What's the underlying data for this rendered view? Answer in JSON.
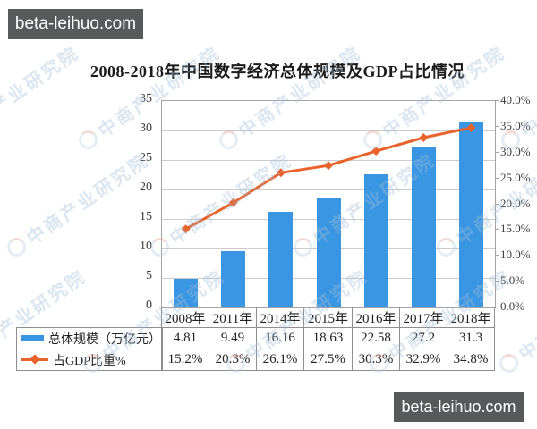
{
  "banners": {
    "top_left": "beta-leihuo.com",
    "bottom_right": "beta-leihuo.com"
  },
  "watermark": {
    "text": "中商产业研究院"
  },
  "chart_data": {
    "type": "bar",
    "subtype": "bar-line-combo",
    "title": "2008-2018年中国数字经济总体规模及GDP占比情况",
    "categories": [
      "2008年",
      "2011年",
      "2014年",
      "2015年",
      "2016年",
      "2017年",
      "2018年"
    ],
    "series": [
      {
        "name": "总体规模（万亿元）",
        "type": "bar",
        "axis": "left",
        "color": "#3a96e2",
        "values": [
          4.81,
          9.49,
          16.16,
          18.63,
          22.58,
          27.2,
          31.3
        ],
        "labels": [
          "4.81",
          "9.49",
          "16.16",
          "18.63",
          "22.58",
          "27.2",
          "31.3"
        ]
      },
      {
        "name": "占GDP比重%",
        "type": "line",
        "axis": "right",
        "color": "#e8622c",
        "values": [
          15.2,
          20.3,
          26.1,
          27.5,
          30.3,
          32.9,
          34.8
        ],
        "labels": [
          "15.2%",
          "20.3%",
          "26.1%",
          "27.5%",
          "30.3%",
          "32.9%",
          "34.8%"
        ]
      }
    ],
    "left_axis": {
      "min": 0,
      "max": 35,
      "step": 5,
      "ticks": [
        "0",
        "5",
        "10",
        "15",
        "20",
        "25",
        "30",
        "35"
      ]
    },
    "right_axis": {
      "min": 0,
      "max": 40,
      "step": 5,
      "ticks": [
        "0.0%",
        "5.0%",
        "10.0%",
        "15.0%",
        "20.0%",
        "25.0%",
        "30.0%",
        "35.0%",
        "40.0%"
      ]
    },
    "grid": "horizontal-only",
    "legend_position": "data-table-left",
    "colors": {
      "bar": "#3a96e2",
      "line": "#e8622c",
      "banner_bg": "#58595b",
      "watermark": "#9fbfd8"
    }
  }
}
